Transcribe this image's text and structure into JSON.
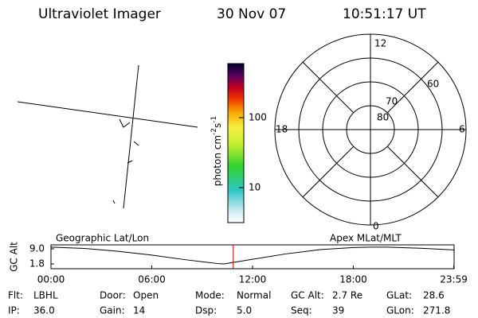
{
  "header": {
    "title": "Ultraviolet Imager",
    "date": "30 Nov 07",
    "time": "10:51:17 UT"
  },
  "map": {
    "left_label": "Geographic Lat/Lon",
    "right_label": "Apex MLat/MLT"
  },
  "colorbar": {
    "label": [
      "photon cm",
      "-2",
      "s",
      "-1"
    ],
    "ticks": [
      "100",
      "10"
    ]
  },
  "polar": {
    "rings": [
      "80",
      "70",
      "60"
    ],
    "hours": [
      "12",
      "18",
      "6",
      "0"
    ]
  },
  "chart_data": {
    "type": "line",
    "ylabel": "GC Alt",
    "x": [
      0,
      2,
      4,
      6,
      8,
      10,
      10.3,
      12,
      14,
      16,
      18,
      19,
      20,
      22,
      24
    ],
    "series": [
      {
        "name": "GC Alt",
        "color": "#000000",
        "values": [
          9.8,
          9.2,
          7.8,
          6.0,
          3.8,
          1.9,
          1.8,
          4.0,
          6.6,
          8.6,
          9.6,
          9.8,
          9.8,
          9.3,
          8.5
        ]
      }
    ],
    "current_time": 10.85,
    "current_color": "#e00000",
    "xlim": [
      0,
      24
    ],
    "ylim": [
      -0.5,
      10.9
    ],
    "xticks": [
      {
        "value": 0,
        "label": "00:00"
      },
      {
        "value": 6,
        "label": "06:00"
      },
      {
        "value": 12,
        "label": "12:00"
      },
      {
        "value": 18,
        "label": "18:00"
      },
      {
        "value": 23.98,
        "label": "23:59"
      }
    ],
    "yticks": [
      {
        "value": 9.0,
        "label": "9.0"
      },
      1.8
    ]
  },
  "footer": [
    [
      [
        "Flt:",
        "LBHL"
      ],
      [
        "Door:",
        "Open"
      ],
      [
        "Mode:",
        "Normal"
      ],
      [
        "GC Alt:",
        "2.7 Re"
      ],
      [
        "GLat:",
        "28.6"
      ]
    ],
    [
      [
        "IP:",
        "36.0"
      ],
      [
        "Gain:",
        "14"
      ],
      [
        "Dsp:",
        "5.0"
      ],
      [
        "Seq:",
        "39"
      ],
      [
        "GLon:",
        "271.8"
      ]
    ]
  ]
}
